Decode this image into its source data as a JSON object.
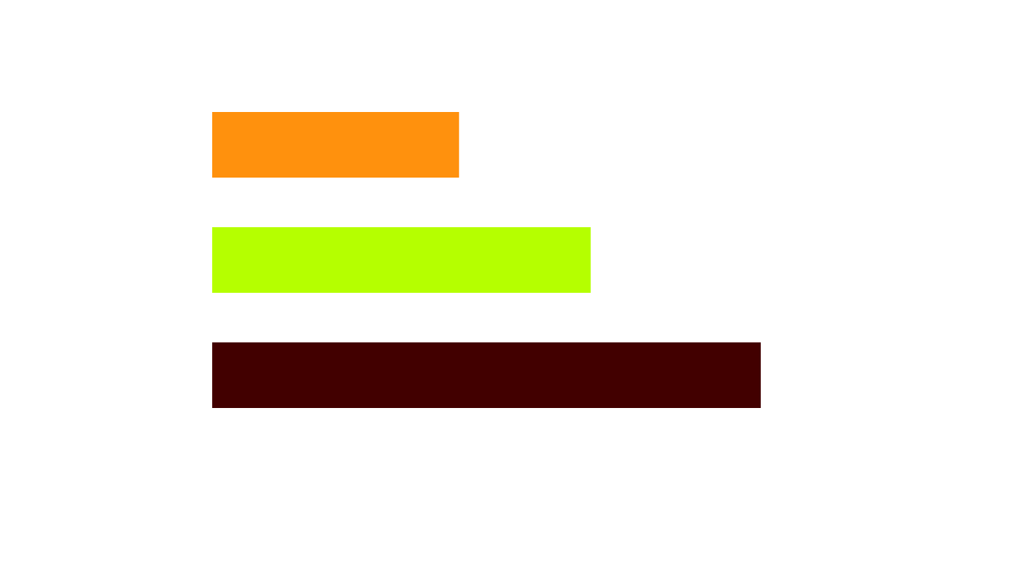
{
  "chart_data": {
    "type": "bar",
    "orientation": "horizontal",
    "categories": [
      "",
      "",
      ""
    ],
    "values": [
      45,
      69,
      100
    ],
    "colors": [
      "#ff910d",
      "#b5ff00",
      "#420000"
    ],
    "xlim": [
      0,
      100
    ],
    "title": "",
    "xlabel": "",
    "ylabel": "",
    "grid": false,
    "axes_visible": false,
    "legend": "none"
  }
}
